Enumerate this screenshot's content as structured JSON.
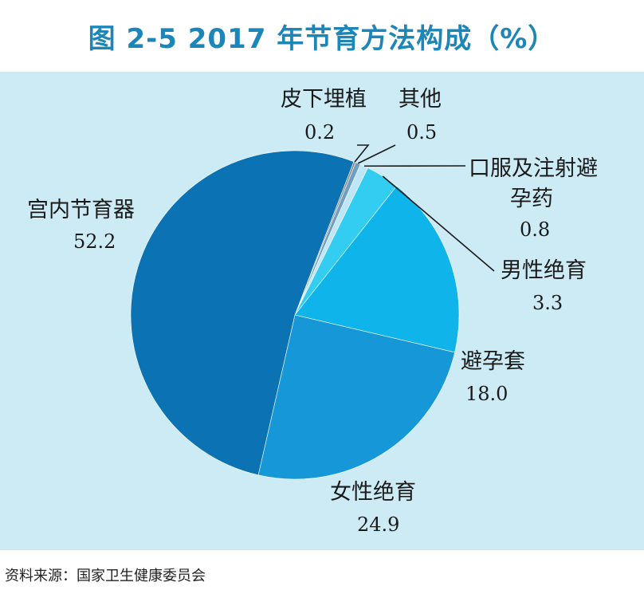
{
  "chart_data": {
    "type": "pie",
    "title": "图 2-5  2017 年节育方法构成（%）",
    "source": "资料来源：国家卫生健康委员会",
    "slices": [
      {
        "label": "宫内节育器",
        "value": 52.2,
        "display": "52.2",
        "color": "#0b73b4"
      },
      {
        "label": "皮下埋植",
        "value": 0.2,
        "display": "0.2",
        "color": "#8a8a8a"
      },
      {
        "label": "其他",
        "value": 0.5,
        "display": "0.5",
        "color": "#6fa0c4"
      },
      {
        "label": "口服及注射避孕药",
        "label_lines": [
          "口服及注射避",
          "孕药"
        ],
        "value": 0.8,
        "display": "0.8",
        "color": "#bfe6f5"
      },
      {
        "label": "男性绝育",
        "value": 3.3,
        "display": "3.3",
        "color": "#33cdf2"
      },
      {
        "label": "避孕套",
        "value": 18.0,
        "display": "18.0",
        "color": "#0fb4eb"
      },
      {
        "label": "女性绝育",
        "value": 24.9,
        "display": "24.9",
        "color": "#1698d8"
      }
    ]
  }
}
